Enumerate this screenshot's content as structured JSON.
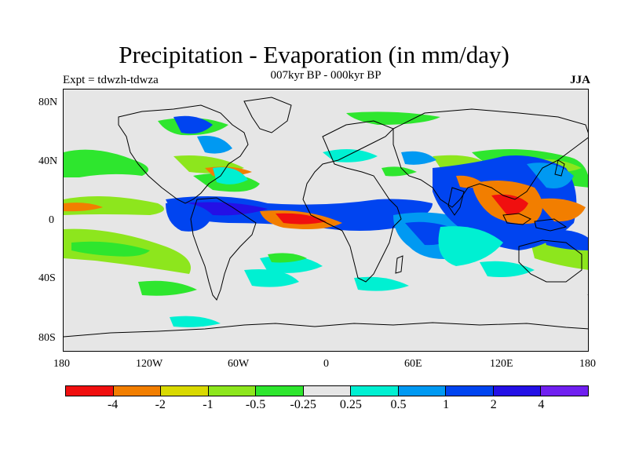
{
  "title": "Precipitation - Evaporation (in mm/day)",
  "subtitle": "007kyr BP - 000kyr BP",
  "left_label": "Expt = tdwzh-tdwza",
  "right_label": "JJA",
  "lat_ticks": [
    "80N",
    "40N",
    "0",
    "40S",
    "80S"
  ],
  "lon_ticks": [
    "180",
    "120W",
    "60W",
    "0",
    "60E",
    "120E",
    "180"
  ],
  "colorbar": {
    "colors": [
      "#f00f0f",
      "#f27e00",
      "#d9d900",
      "#8de61d",
      "#2ee62e",
      "#e6e6e6",
      "#00f0d2",
      "#0099f2",
      "#0044f0",
      "#2410e6",
      "#7020f0"
    ],
    "labels": [
      "-4",
      "-2",
      "-1",
      "-0.5",
      "-0.25",
      "0.25",
      "0.5",
      "1",
      "2",
      "4"
    ]
  },
  "map": {
    "background": "#e6e6e6",
    "coastline_color": "#000000"
  }
}
